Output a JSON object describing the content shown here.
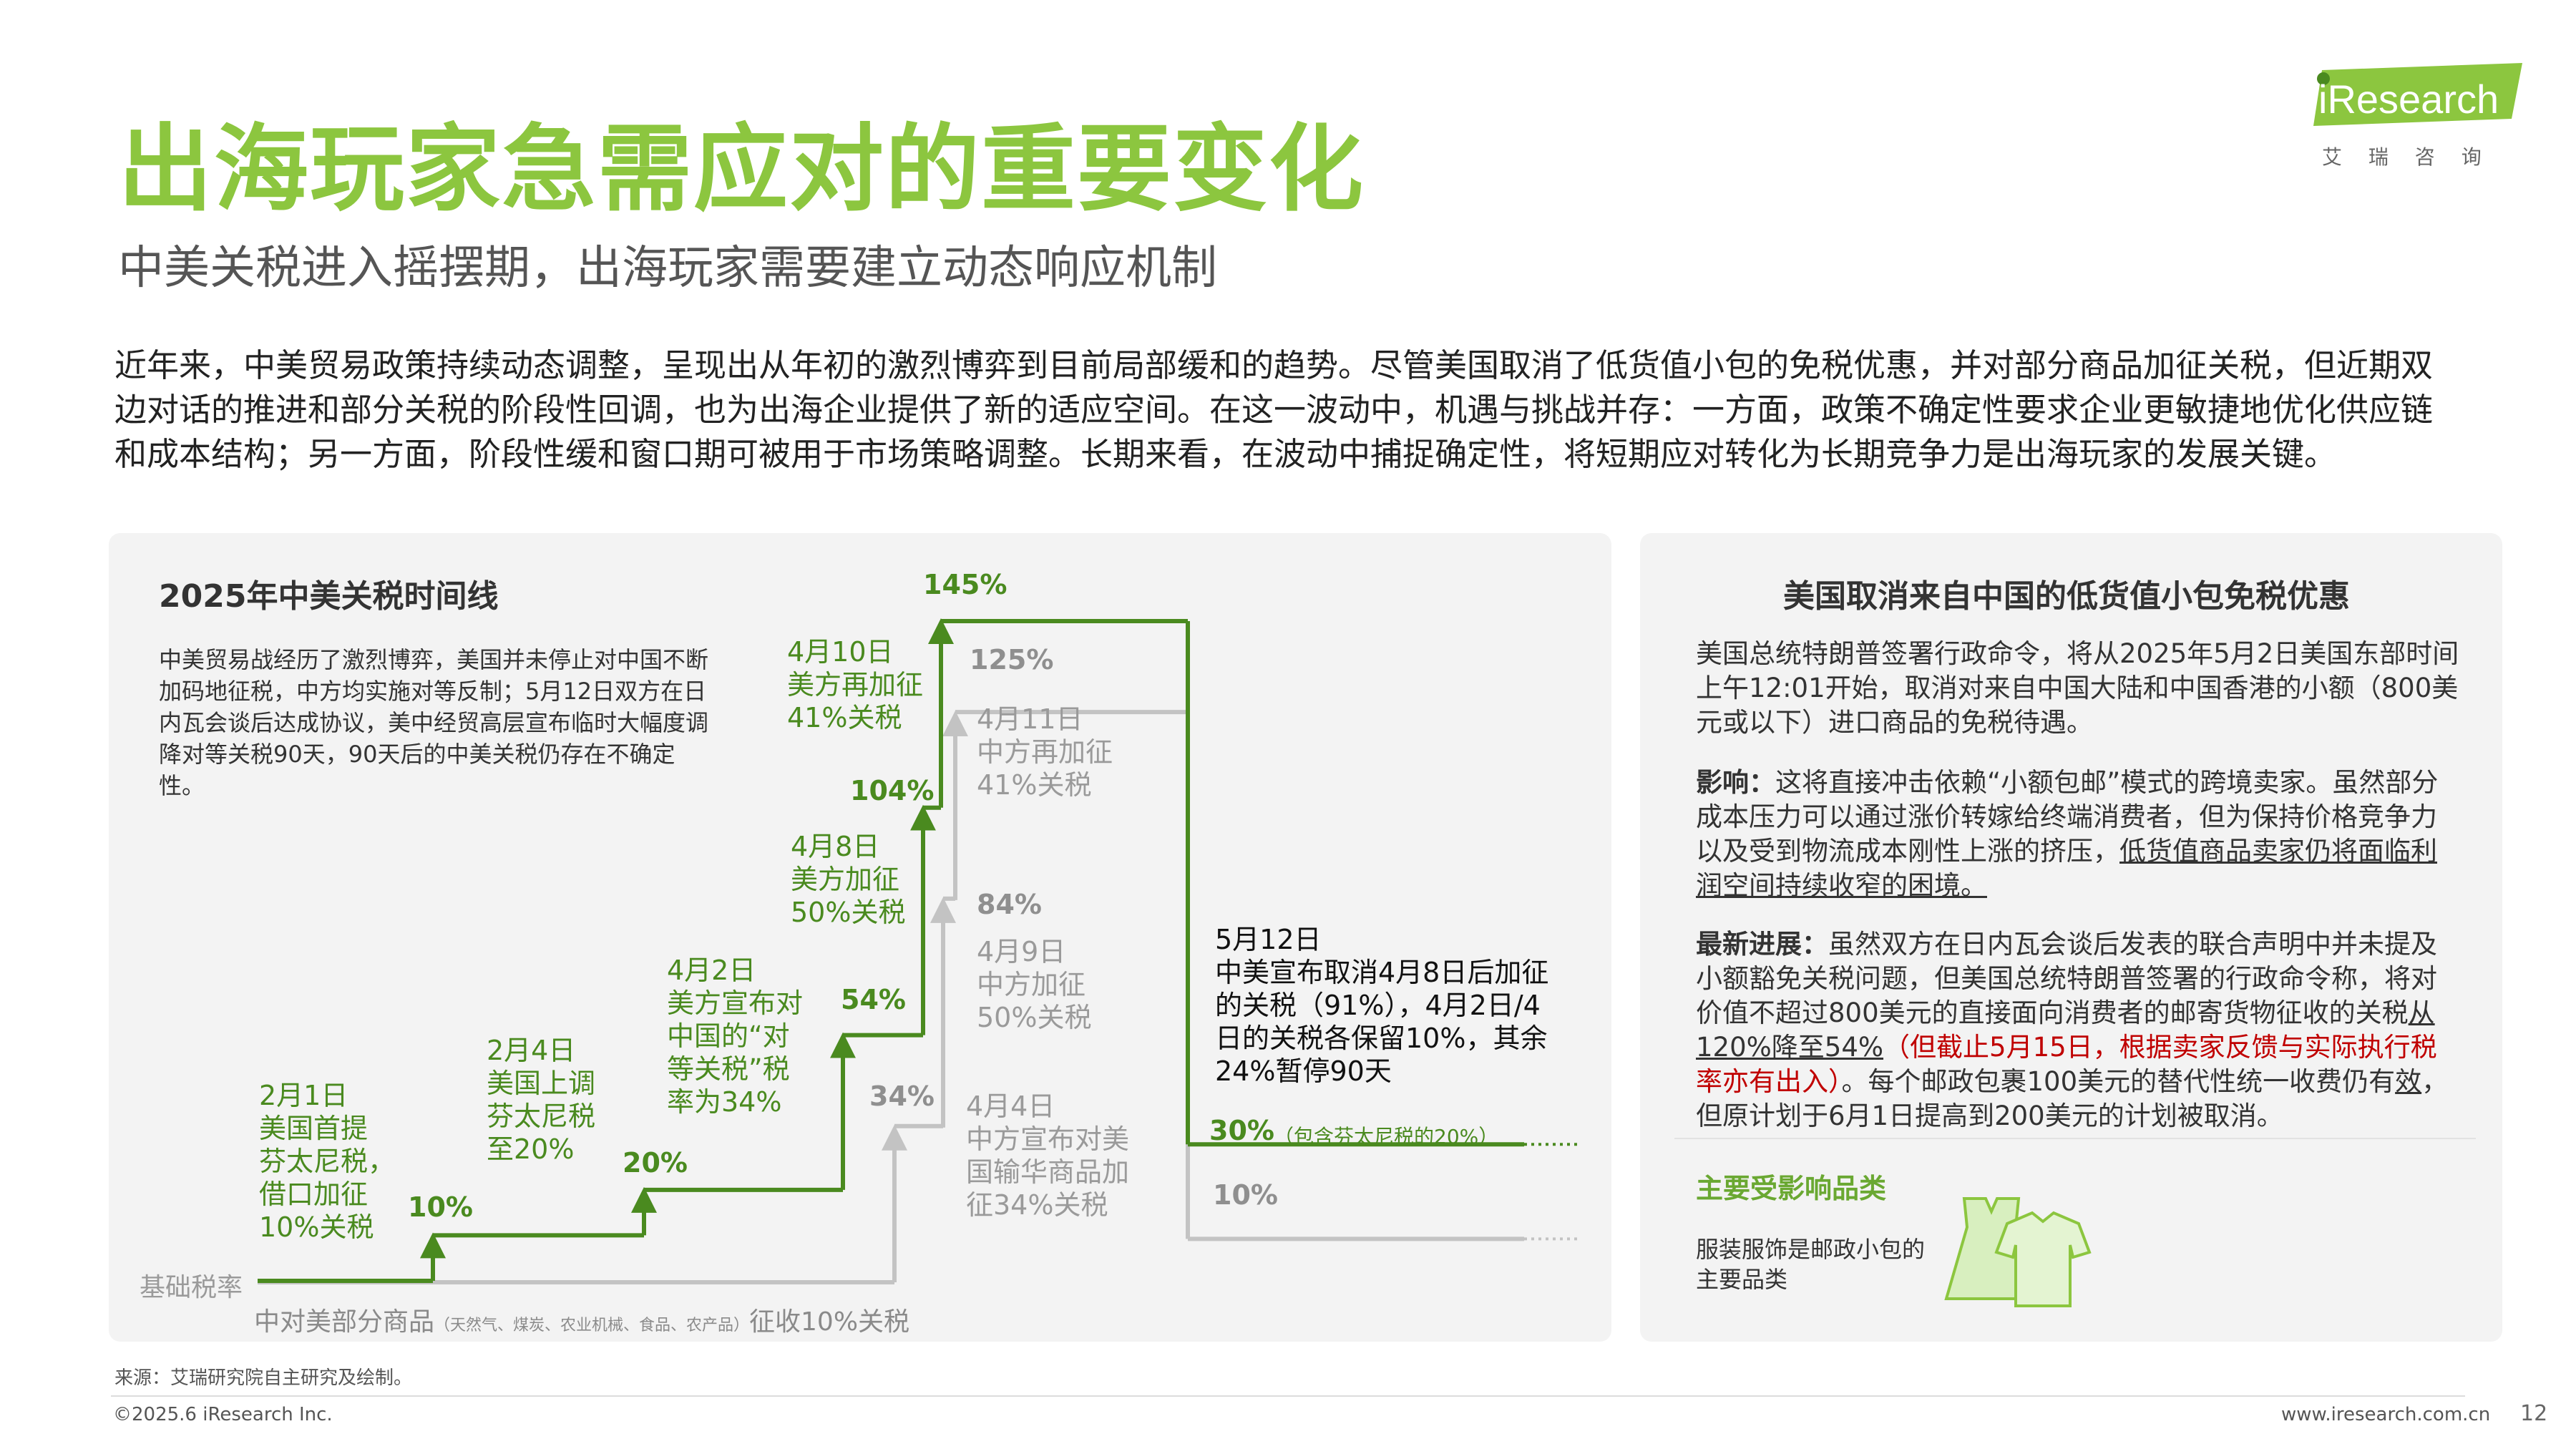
{
  "brand": {
    "logo_text": "iResearch",
    "logo_sub": "艾 瑞 咨 询",
    "accent": "#8cc63f",
    "dark_green": "#4a8a1f"
  },
  "title": "出海玩家急需应对的重要变化",
  "subtitle": "中美关税进入摇摆期，出海玩家需要建立动态响应机制",
  "intro": "近年来，中美贸易政策持续动态调整，呈现出从年初的激烈博弈到目前局部缓和的趋势。尽管美国取消了低货值小包的免税优惠，并对部分商品加征关税，但近期双边对话的推进和部分关税的阶段性回调，也为出海企业提供了新的适应空间。在这一波动中，机遇与挑战并存：一方面，政策不确定性要求企业更敏捷地优化供应链和成本结构；另一方面，阶段性缓和窗口期可被用于市场策略调整。长期来看，在波动中捕捉确定性，将短期应对转化为长期竞争力是出海玩家的发展关键。",
  "left_panel": {
    "title": "2025年中美关税时间线",
    "desc": "中美贸易战经历了激烈博弈，美国并未停止对中国不断加码地征税，中方均实施对等反制；5月12日双方在日内瓦会谈后达成协议，美中经贸高层宣布临时大幅度调降对等关税90天，90天后的中美关税仍存在不确定性。",
    "base_label": "基础税率",
    "china_base_label": "中对美部分商品",
    "china_base_note": "（天然气、煤炭、农业机械、食品、农产品）",
    "china_base_tail": "征收10%关税"
  },
  "chart_data": {
    "type": "step-line",
    "title": "2025年中美关税时间线",
    "series": [
      {
        "name": "美方",
        "color": "#4a8a1f",
        "steps": [
          {
            "date": "2月1日",
            "value": 10,
            "label_pct": "10%",
            "event": "2月1日\n美国首提\n芬太尼税，\n借口加征\n10%关税"
          },
          {
            "date": "2月4日",
            "value": 20,
            "label_pct": "20%",
            "event": "2月4日\n美国上调\n芬太尼税\n至20%"
          },
          {
            "date": "4月2日",
            "value": 54,
            "label_pct": "54%",
            "event": "4月2日\n美方宣布对\n中国的“对\n等关税”税\n率为34%"
          },
          {
            "date": "4月8日",
            "value": 104,
            "label_pct": "104%",
            "event": "4月8日\n美方加征\n50%关税"
          },
          {
            "date": "4月10日",
            "value": 145,
            "label_pct": "145%",
            "event": "4月10日\n美方再加征\n41%关税"
          },
          {
            "date": "5月12日",
            "value": 30,
            "label_pct": "30%",
            "note": "（包含芬太尼税的20%）"
          }
        ]
      },
      {
        "name": "中方",
        "color": "#bdbdbd",
        "steps": [
          {
            "date": "基础",
            "value": 10
          },
          {
            "date": "4月4日",
            "value": 34,
            "label_pct": "34%",
            "event": "4月4日\n中方宣布对美\n国输华商品加\n征34%关税"
          },
          {
            "date": "4月9日",
            "value": 84,
            "label_pct": "84%",
            "event": "4月9日\n中方加征\n50%关税"
          },
          {
            "date": "4月11日",
            "value": 125,
            "label_pct": "125%",
            "event": "4月11日\n中方再加征\n41%关税"
          },
          {
            "date": "5月12日",
            "value": 10,
            "label_pct": "10%"
          }
        ]
      }
    ],
    "may12_event": "5月12日\n中美宣布取消4月8日后加征\n的关税（91%），4月2日/4\n日的关税各保留10%，其余\n24%暂停90天"
  },
  "right_panel": {
    "title": "美国取消来自中国的低货值小包免税优惠",
    "p1": "美国总统特朗普签署行政命令，将从2025年5月2日美国东部时间上午12:01开始，取消对来自中国大陆和中国香港的小额（800美元或以下）进口商品的免税待遇。",
    "impact_label": "影响：",
    "impact_text": "这将直接冲击依赖“小额包邮”模式的跨境卖家。虽然部分成本压力可以通过涨价转嫁给终端消费者，但为保持价格竞争力以及受到物流成本刚性上涨的挤压，",
    "impact_ul": "低货值商品卖家仍将面临利润空间持续收窄的困境。",
    "progress_label": "最新进展：",
    "progress_a": "虽然双方在日内瓦会谈后发表的联合声明中并未提及小额豁免关税问题，但美国总统特朗普签署的行政命令称，将对价值不超过800美元的直接面向消费者的邮寄货物征收的关税",
    "progress_ul": "从120%降至54%",
    "progress_red": "（但截止5月15日，根据卖家反馈与实际执行税率亦有出入）",
    "progress_b": "。每个邮政包裹100美元的替代性统一收费仍有",
    "progress_b_ul": "效",
    "progress_c": "，但原计划于6月1日提高到200美元的计划被取消。",
    "category_title": "主要受影响品类",
    "category_text": "服装服饰是邮政小包的主要品类"
  },
  "footer": {
    "source": "来源：艾瑞研究院自主研究及绘制。",
    "copyright": "©2025.6 iResearch Inc.",
    "website": "www.iresearch.com.cn",
    "page": "12"
  }
}
